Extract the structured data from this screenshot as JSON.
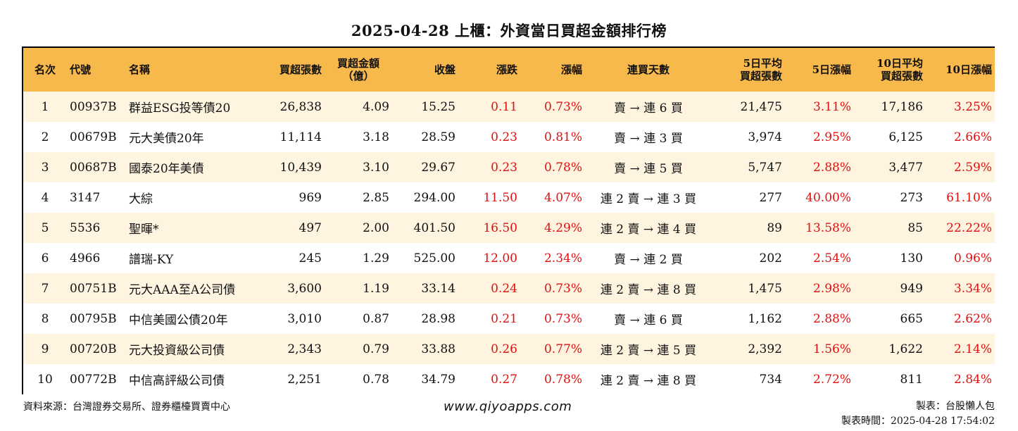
{
  "title": "2025-04-28 上櫃：外資當日買超金額排行榜",
  "headers": [
    "名次",
    "代號",
    "名稱",
    "買超張數",
    "買超金額\n（億）",
    "收盤",
    "漲跌",
    "漲幅",
    "連買天數",
    "5日平均\n買超張數",
    "5日漲幅",
    "10日平均\n買超張數",
    "10日漲幅"
  ],
  "rows": [
    [
      "1",
      "00937B",
      "群益ESG投等債20",
      "26,838",
      "4.09",
      "15.25",
      "0.11",
      "0.73%",
      "賣 → 連 6 買",
      "21,475",
      "3.11%",
      "17,186",
      "3.25%"
    ],
    [
      "2",
      "00679B",
      "元大美債20年",
      "11,114",
      "3.18",
      "28.59",
      "0.23",
      "0.81%",
      "賣 → 連 3 買",
      "3,974",
      "2.95%",
      "6,125",
      "2.66%"
    ],
    [
      "3",
      "00687B",
      "國泰20年美債",
      "10,439",
      "3.10",
      "29.67",
      "0.23",
      "0.78%",
      "賣 → 連 5 買",
      "5,747",
      "2.88%",
      "3,477",
      "2.59%"
    ],
    [
      "4",
      "3147",
      "大綜",
      "969",
      "2.85",
      "294.00",
      "11.50",
      "4.07%",
      "連 2 賣 → 連 3 買",
      "277",
      "40.00%",
      "273",
      "61.10%"
    ],
    [
      "5",
      "5536",
      "聖暉*",
      "497",
      "2.00",
      "401.50",
      "16.50",
      "4.29%",
      "連 2 賣 → 連 4 買",
      "89",
      "13.58%",
      "85",
      "22.22%"
    ],
    [
      "6",
      "4966",
      "譜瑞-KY",
      "245",
      "1.29",
      "525.00",
      "12.00",
      "2.34%",
      "賣 → 連 2 買",
      "202",
      "2.54%",
      "130",
      "0.96%"
    ],
    [
      "7",
      "00751B",
      "元大AAA至A公司債",
      "3,600",
      "1.19",
      "33.14",
      "0.24",
      "0.73%",
      "連 2 賣 → 連 8 買",
      "1,475",
      "2.98%",
      "949",
      "3.34%"
    ],
    [
      "8",
      "00795B",
      "中信美國公債20年",
      "3,010",
      "0.87",
      "28.98",
      "0.21",
      "0.73%",
      "賣 → 連 6 買",
      "1,162",
      "2.88%",
      "665",
      "2.62%"
    ],
    [
      "9",
      "00720B",
      "元大投資級公司債",
      "2,343",
      "0.79",
      "33.88",
      "0.26",
      "0.77%",
      "連 2 賣 → 連 5 買",
      "2,392",
      "1.56%",
      "1,622",
      "2.14%"
    ],
    [
      "10",
      "00772B",
      "中信高評級公司債",
      "2,251",
      "0.78",
      "34.79",
      "0.27",
      "0.78%",
      "連 2 賣 → 連 8 買",
      "734",
      "2.72%",
      "811",
      "2.84%"
    ]
  ],
  "colors": {
    "header_bg": "#f7b84c",
    "stripe_bg": "#fff4e0",
    "up": "#e01010"
  },
  "footer": {
    "source": "資料來源：台灣證券交易所、證券櫃檯買賣中心",
    "website": "www.qiyoapps.com",
    "author": "製表：台股懶人包",
    "time": "製表時間：2025-04-28 17:54:02"
  }
}
